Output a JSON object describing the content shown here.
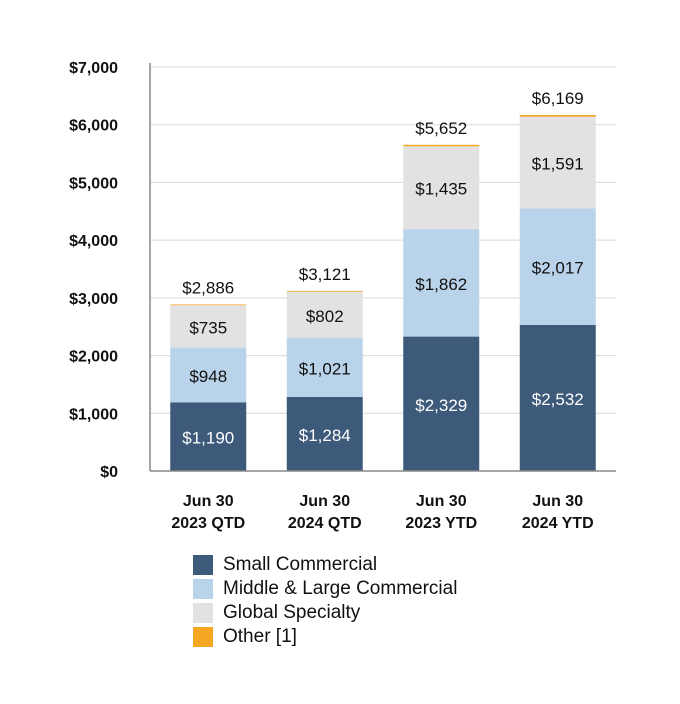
{
  "chart_data": {
    "type": "bar",
    "stacked": true,
    "categories": [
      [
        "Jun 30",
        "2023 QTD"
      ],
      [
        "Jun 30",
        "2024 QTD"
      ],
      [
        "Jun 30",
        "2023 YTD"
      ],
      [
        "Jun 30",
        "2024 YTD"
      ]
    ],
    "series": [
      {
        "name": "Small Commercial",
        "color": "#3d5a7a",
        "values": [
          1190,
          1284,
          2329,
          2532
        ],
        "labels": [
          "$1,190",
          "$1,284",
          "$2,329",
          "$2,532"
        ]
      },
      {
        "name": "Middle & Large Commercial",
        "color": "#b9d3ea",
        "values": [
          948,
          1021,
          1862,
          2017
        ],
        "labels": [
          "$948",
          "$1,021",
          "$1,862",
          "$2,017"
        ]
      },
      {
        "name": "Global Specialty",
        "color": "#e2e2e2",
        "values": [
          735,
          802,
          1435,
          1591
        ],
        "labels": [
          "$735",
          "$802",
          "$1,435",
          "$1,591"
        ]
      },
      {
        "name": "Other [1]",
        "color": "#f5a623",
        "values": [
          13,
          14,
          26,
          29
        ]
      }
    ],
    "totals": [
      2886,
      3121,
      5652,
      6169
    ],
    "total_labels": [
      "$2,886",
      "$3,121",
      "$5,652",
      "$6,169"
    ],
    "ylim": [
      0,
      7000
    ],
    "yticks": [
      0,
      1000,
      2000,
      3000,
      4000,
      5000,
      6000,
      7000
    ],
    "ytick_labels": [
      "$0",
      "$1,000",
      "$2,000",
      "$3,000",
      "$4,000",
      "$5,000",
      "$6,000",
      "$7,000"
    ],
    "grid": true,
    "legend_position": "bottom"
  }
}
